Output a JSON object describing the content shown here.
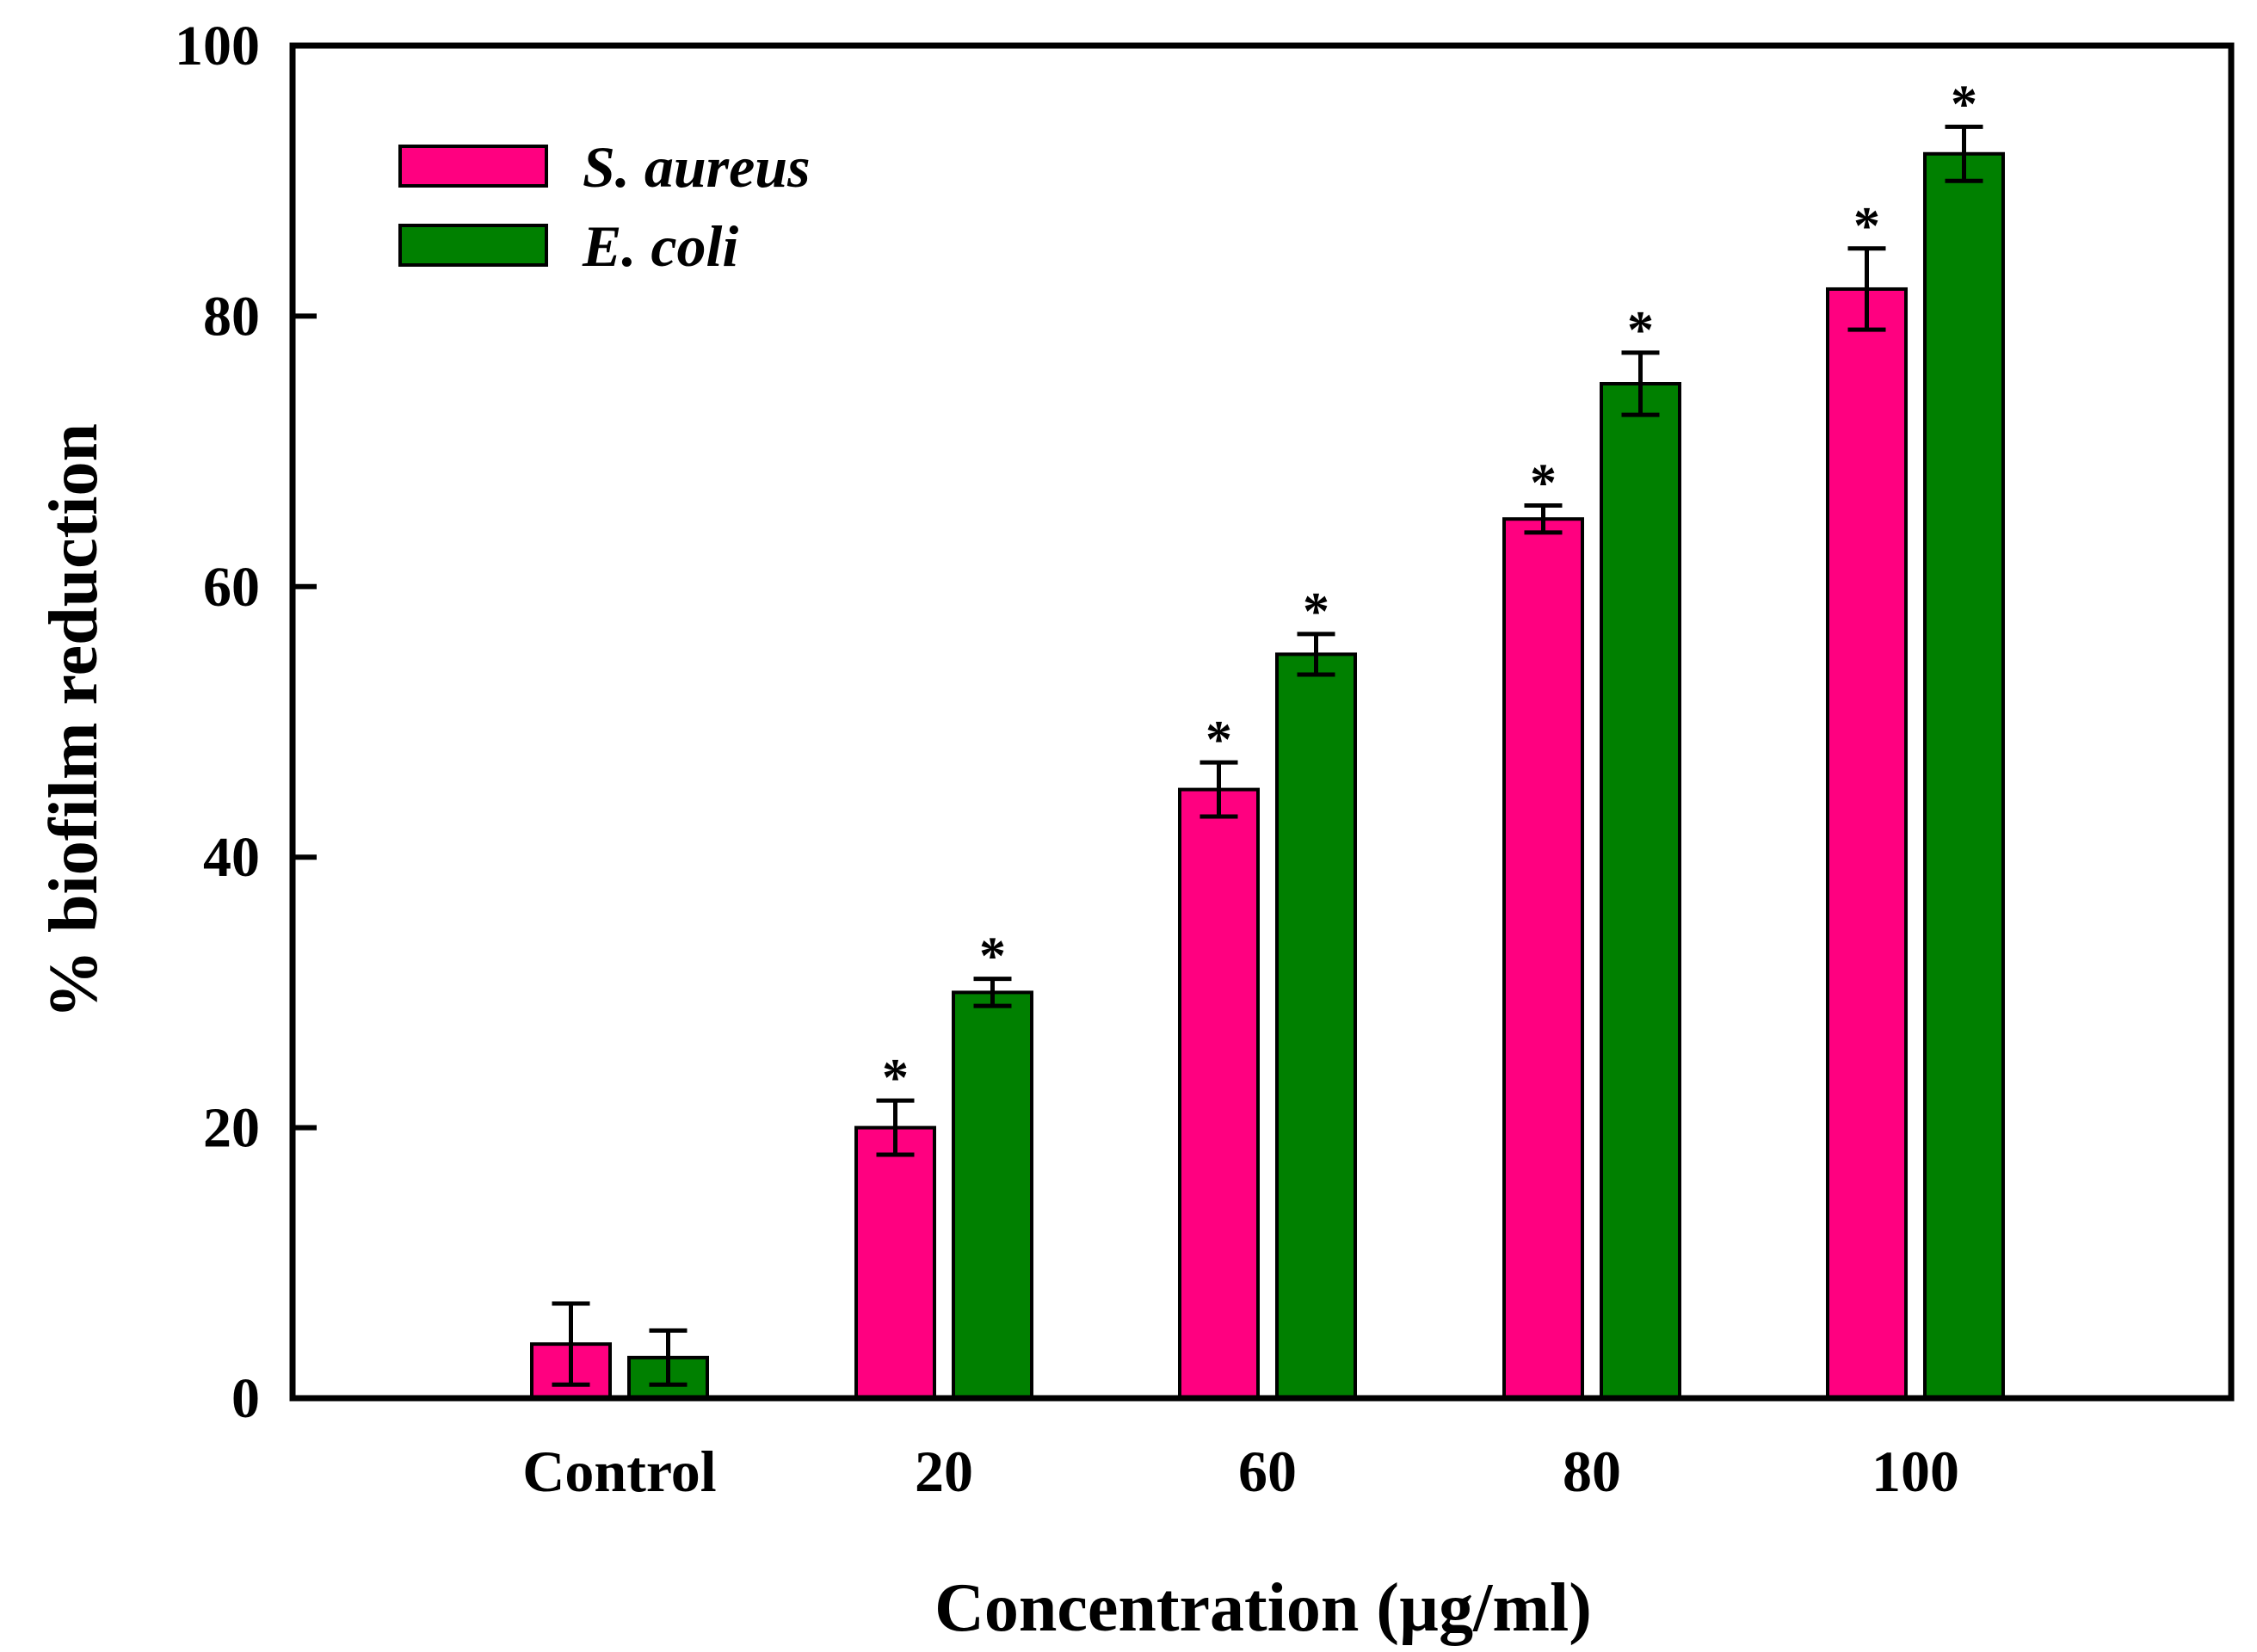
{
  "chart_data": {
    "type": "bar",
    "title": "",
    "xlabel": "Concentration (µg/ml)",
    "ylabel": "% biofilm reduction",
    "ylim": [
      0,
      100
    ],
    "yticks": [
      0,
      20,
      40,
      60,
      80,
      100
    ],
    "grid": false,
    "legend_position": "top-left",
    "categories": [
      "Control",
      "20",
      "60",
      "80",
      "100"
    ],
    "series": [
      {
        "name": "S. aureus",
        "color": "#ff0080",
        "values": [
          4,
          20,
          45,
          65,
          82
        ],
        "errors": [
          3,
          2,
          2,
          1,
          3
        ],
        "significant": [
          false,
          true,
          true,
          true,
          true
        ]
      },
      {
        "name": "E. coli",
        "color": "#008000",
        "values": [
          3,
          30,
          55,
          75,
          92
        ],
        "errors": [
          2,
          1,
          1.5,
          2.3,
          2
        ],
        "significant": [
          false,
          true,
          true,
          true,
          true
        ]
      }
    ],
    "significance_marker": "*"
  }
}
